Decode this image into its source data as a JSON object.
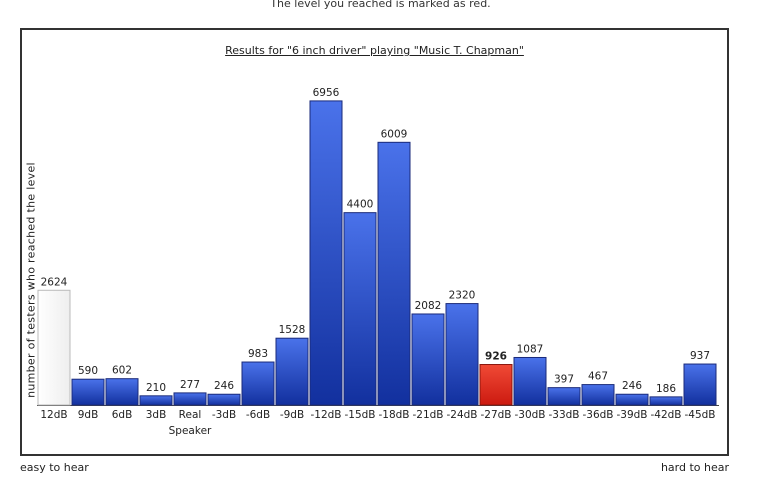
{
  "header_note": "The level you reached is marked as red.",
  "footer": {
    "left": "easy to hear",
    "right": "hard to hear"
  },
  "colors": {
    "bar": "#2f4fc9",
    "highlight": "#e53a2a",
    "reference": "#ffffff"
  },
  "chart_data": {
    "type": "bar",
    "title": "Results for \"6 inch driver\" playing \"Music T. Chapman\"",
    "ylabel": "number of testers who reached the level",
    "xlabel": "",
    "ylim": [
      0,
      7000
    ],
    "grid": false,
    "legend": "none",
    "highlight_index": 13,
    "reference_index": 0,
    "categories": [
      "12dB",
      "9dB",
      "6dB",
      "3dB",
      "Real Speaker",
      "-3dB",
      "-6dB",
      "-9dB",
      "-12dB",
      "-15dB",
      "-18dB",
      "-21dB",
      "-24dB",
      "-27dB",
      "-30dB",
      "-33dB",
      "-36dB",
      "-39dB",
      "-42dB",
      "-45dB"
    ],
    "values": [
      2624,
      590,
      602,
      210,
      277,
      246,
      983,
      1528,
      6956,
      4400,
      6009,
      2082,
      2320,
      926,
      1087,
      397,
      467,
      246,
      186,
      937
    ]
  }
}
